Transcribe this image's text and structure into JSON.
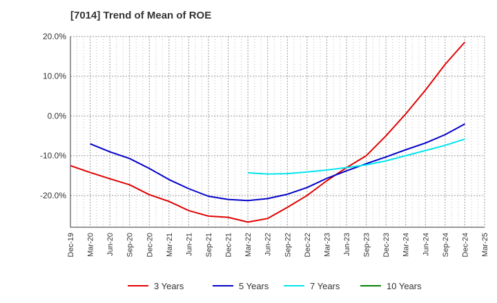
{
  "chart_data": {
    "type": "line",
    "title": "[7014]  Trend of Mean of ROE",
    "xlabel": "",
    "ylabel": "",
    "ylim": [
      -28,
      20
    ],
    "y_ticks": [
      20,
      10,
      0,
      -10,
      -20
    ],
    "y_tick_labels": [
      "20.0%",
      "10.0%",
      "0.0%",
      "-10.0%",
      "-20.0%"
    ],
    "x_tick_labels": [
      "Dec-19",
      "Mar-20",
      "Jun-20",
      "Sep-20",
      "Dec-20",
      "Mar-21",
      "Jun-21",
      "Sep-21",
      "Dec-21",
      "Mar-22",
      "Jun-22",
      "Sep-22",
      "Dec-22",
      "Mar-23",
      "Jun-23",
      "Sep-23",
      "Dec-23",
      "Mar-24",
      "Jun-24",
      "Sep-24",
      "Dec-24",
      "Mar-25"
    ],
    "grid": true,
    "legend_position": "bottom",
    "series": [
      {
        "name": "3 Years",
        "color": "#e00000",
        "points": [
          [
            0,
            -12.5
          ],
          [
            1,
            -14.2
          ],
          [
            2,
            -15.8
          ],
          [
            3,
            -17.3
          ],
          [
            4,
            -19.8
          ],
          [
            5,
            -21.5
          ],
          [
            6,
            -23.8
          ],
          [
            7,
            -25.2
          ],
          [
            8,
            -25.5
          ],
          [
            9,
            -26.7
          ],
          [
            10,
            -25.8
          ],
          [
            11,
            -23.0
          ],
          [
            12,
            -20.0
          ],
          [
            13,
            -16.3
          ],
          [
            14,
            -13.0
          ],
          [
            15,
            -10.0
          ],
          [
            16,
            -5.0
          ],
          [
            17,
            0.5
          ],
          [
            18,
            6.5
          ],
          [
            19,
            13.0
          ],
          [
            20,
            18.6
          ]
        ]
      },
      {
        "name": "5 Years",
        "color": "#0000c8",
        "points": [
          [
            1,
            -7.0
          ],
          [
            2,
            -9.0
          ],
          [
            3,
            -10.7
          ],
          [
            4,
            -13.2
          ],
          [
            5,
            -16.0
          ],
          [
            6,
            -18.3
          ],
          [
            7,
            -20.2
          ],
          [
            8,
            -21.0
          ],
          [
            9,
            -21.3
          ],
          [
            10,
            -20.8
          ],
          [
            11,
            -19.7
          ],
          [
            12,
            -18.0
          ],
          [
            13,
            -15.7
          ],
          [
            14,
            -13.8
          ],
          [
            15,
            -12.0
          ],
          [
            16,
            -10.3
          ],
          [
            17,
            -8.5
          ],
          [
            18,
            -6.8
          ],
          [
            19,
            -4.7
          ],
          [
            20,
            -2.0
          ]
        ]
      },
      {
        "name": "7 Years",
        "color": "#00e5ee",
        "points": [
          [
            9,
            -14.3
          ],
          [
            10,
            -14.6
          ],
          [
            11,
            -14.5
          ],
          [
            12,
            -14.1
          ],
          [
            13,
            -13.6
          ],
          [
            14,
            -13.0
          ],
          [
            15,
            -12.3
          ],
          [
            16,
            -11.3
          ],
          [
            17,
            -10.0
          ],
          [
            18,
            -8.7
          ],
          [
            19,
            -7.4
          ],
          [
            20,
            -5.8
          ]
        ]
      },
      {
        "name": "10 Years",
        "color": "#008000",
        "points": []
      }
    ]
  }
}
